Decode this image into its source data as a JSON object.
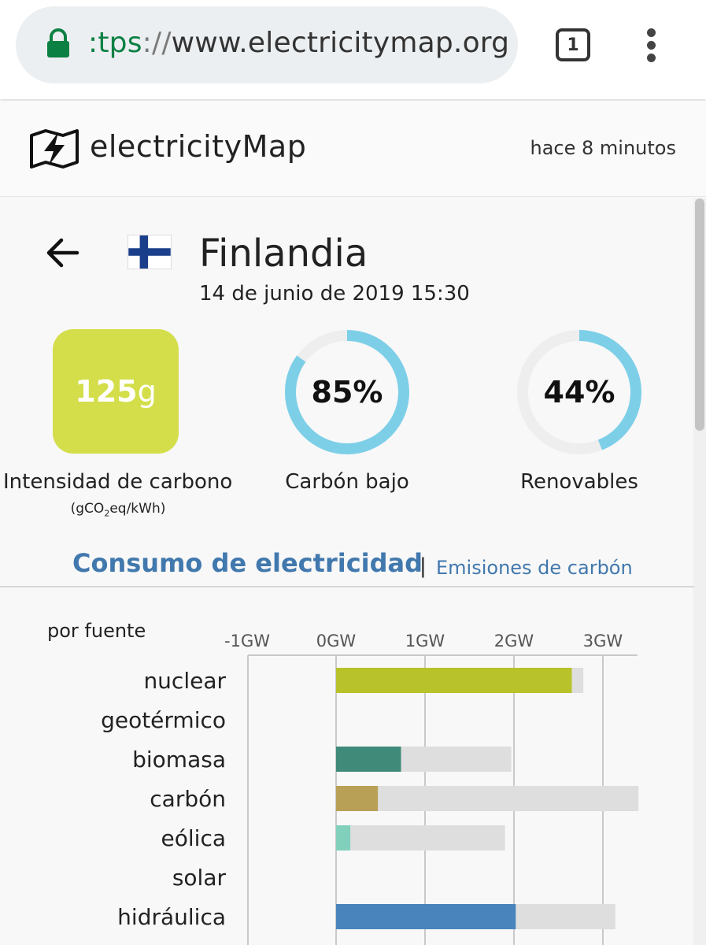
{
  "browser": {
    "url_scheme": ":tps",
    "url_sep": "://",
    "url_host": "www.electricitymap.org",
    "tab_count": "1",
    "icons": [
      "lock-icon",
      "tabs-icon",
      "menu-icon"
    ]
  },
  "header": {
    "logo_text": "electricityMap",
    "updated": "hace 8 minutos"
  },
  "zone": {
    "country": "Finlandia",
    "datetime": "14 de junio de 2019 15:30",
    "flag": "finland-flag-icon"
  },
  "metrics": {
    "carbon_intensity_value": "125",
    "carbon_intensity_unit": "g",
    "carbon_intensity_label": "Intensidad de carbono",
    "carbon_intensity_units_pre": "(gCO",
    "carbon_intensity_units_sub": "2",
    "carbon_intensity_units_post": "eq/kWh)",
    "low_carbon_value": "85%",
    "low_carbon_fraction": 0.85,
    "low_carbon_label": "Carbón bajo",
    "renewable_value": "44%",
    "renewable_fraction": 0.44,
    "renewable_label": "Renovables",
    "ring_color": "#7dcfe8",
    "ring_bg_color": "#eeeeee",
    "co2_box_color": "#d4de4a"
  },
  "section": {
    "title": "Consumo de electricidad",
    "separator": "|",
    "link": "Emisiones de carbón"
  },
  "chart_data": {
    "type": "bar",
    "title": "por fuente",
    "unit": "GW",
    "ticks": [
      "-1GW",
      "0GW",
      "1GW",
      "2GW",
      "3GW"
    ],
    "tick_values": [
      -1,
      0,
      1,
      2,
      3
    ],
    "xlim": [
      -1,
      3.4
    ],
    "grid": true,
    "categories": [
      "nuclear",
      "geotérmico",
      "biomasa",
      "carbón",
      "eólica",
      "solar",
      "hidráulica"
    ],
    "series": [
      {
        "name": "producción",
        "values": [
          2.65,
          0,
          0.73,
          0.47,
          0.16,
          0,
          2.02
        ]
      },
      {
        "name": "capacidad",
        "values": [
          2.78,
          0,
          1.97,
          3.4,
          1.9,
          0,
          3.14
        ]
      }
    ],
    "colors": [
      "#b8c22a",
      null,
      "#3f8a78",
      "#b8a056",
      "#80d0bc",
      null,
      "#4a84bd"
    ],
    "capacity_color": "#dedede"
  }
}
